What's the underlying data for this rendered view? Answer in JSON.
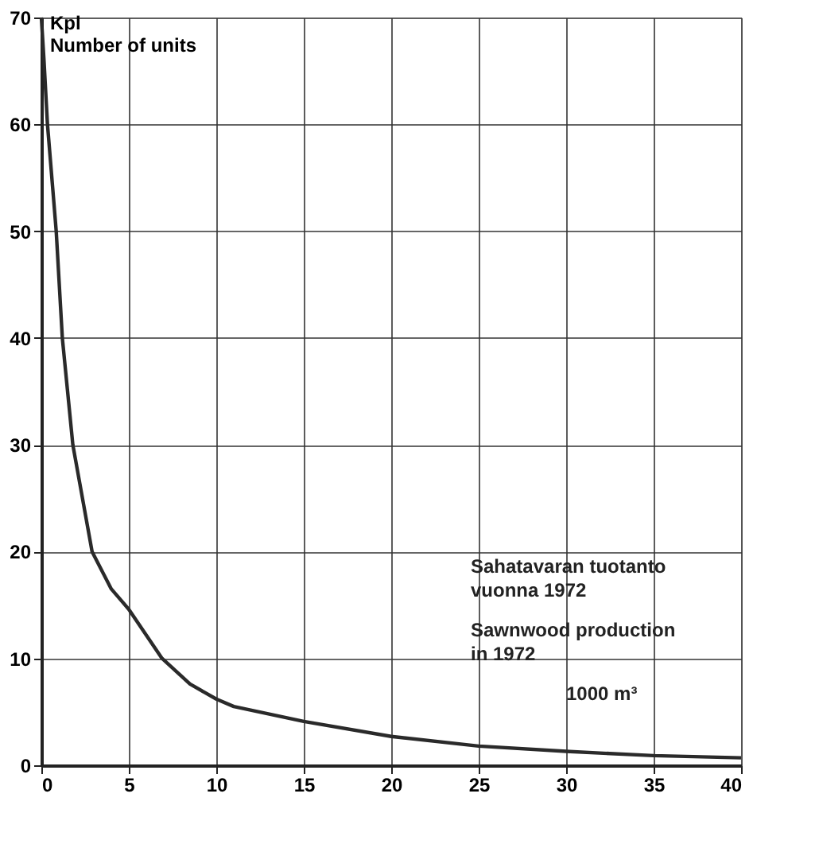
{
  "chart_data": {
    "type": "line",
    "xlabel": "1000 m³",
    "ylabel": "Kpl\nNumber of units",
    "annotations": [
      "Sahatavaran tuotanto\nvuonna 1972",
      "Sawnwood production\nin 1972"
    ],
    "x": [
      0,
      0.15,
      0.35,
      0.6,
      0.85,
      1.2,
      1.8,
      2.9,
      4,
      5,
      6.9,
      8.5,
      10,
      11,
      15,
      20,
      25,
      30,
      35,
      40
    ],
    "series": [
      {
        "color": "#2a2a2a",
        "values": [
          70,
          66,
          60,
          55,
          50,
          40,
          30,
          20,
          16.5,
          14.6,
          10,
          7.6,
          6.2,
          5.5,
          4.1,
          2.7,
          1.8,
          1.3,
          0.9,
          0.7
        ]
      }
    ],
    "xlim": [
      0,
      40
    ],
    "ylim": [
      0,
      70
    ],
    "xticks": [
      0,
      5,
      10,
      15,
      20,
      25,
      30,
      35,
      40
    ],
    "yticks": [
      0,
      10,
      20,
      30,
      40,
      50,
      60,
      70
    ],
    "grid": true,
    "legend": false,
    "marker": "none",
    "line_style": "solid"
  }
}
